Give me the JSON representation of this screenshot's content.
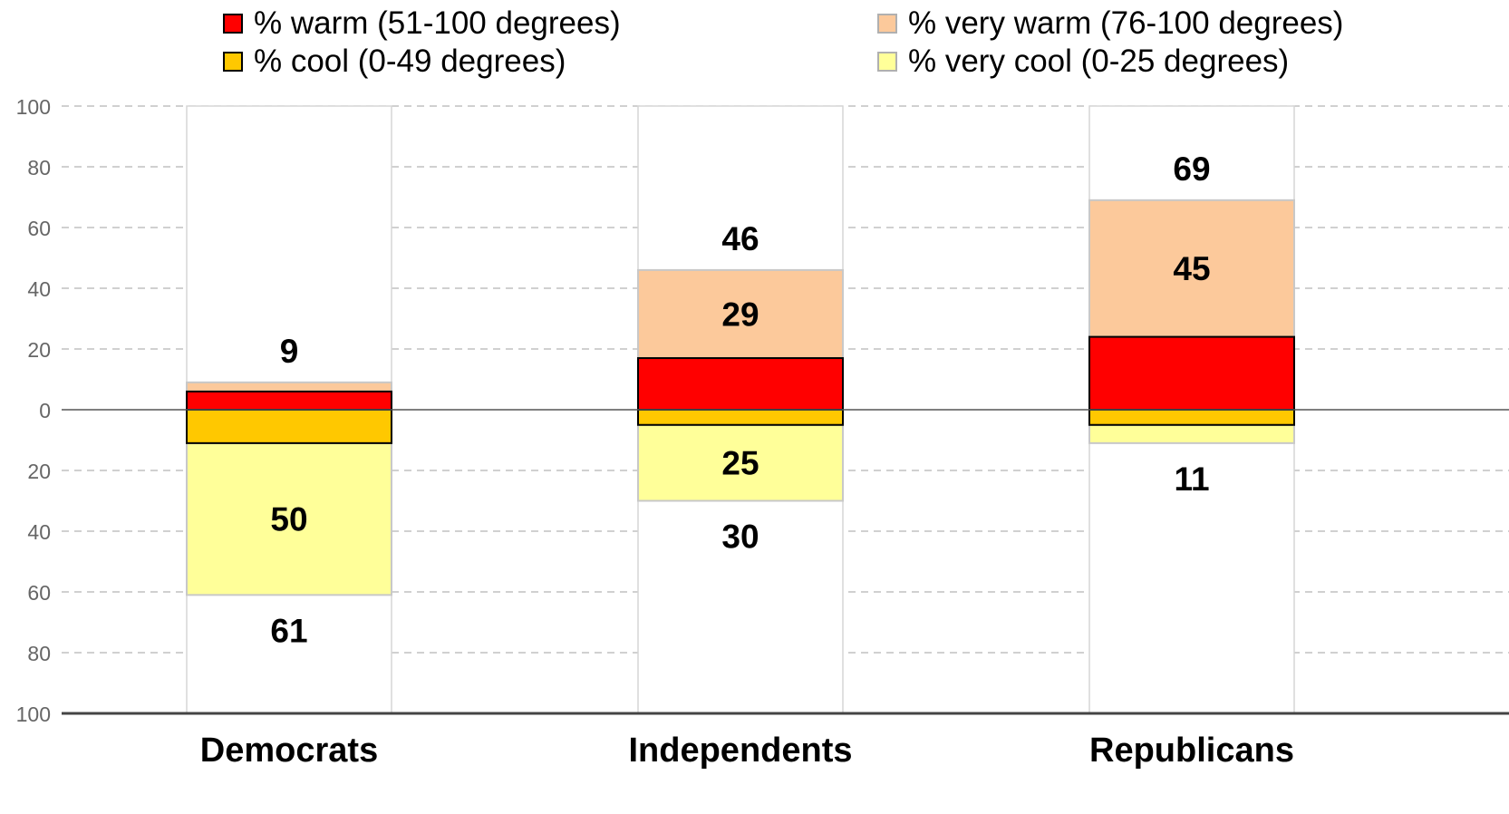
{
  "legend": [
    {
      "key": "warm",
      "label": "% warm (51-100 degrees)"
    },
    {
      "key": "very_warm",
      "label": "% very warm (76-100 degrees)"
    },
    {
      "key": "cool",
      "label": "% cool (0-49 degrees)"
    },
    {
      "key": "very_cool",
      "label": "% very cool (0-25 degrees)"
    }
  ],
  "colors": {
    "warm": "#ff0000",
    "very_warm": "#fcc99b",
    "cool": "#ffc800",
    "very_cool": "#ffff99",
    "column_bg": "#ffffff",
    "grid": "#b4b4b4"
  },
  "chart_data": {
    "type": "bar",
    "stacked": "diverging",
    "categories": [
      "Democrats",
      "Independents",
      "Republicans"
    ],
    "y_ticks": [
      "100",
      "80",
      "60",
      "40",
      "20",
      "0",
      "20",
      "40",
      "60",
      "80",
      "100"
    ],
    "ylim": [
      -100,
      100
    ],
    "grid": true,
    "series": [
      {
        "name": "% very warm (76-100 degrees)",
        "key": "very_warm",
        "values": [
          3,
          29,
          45
        ]
      },
      {
        "name": "% warm (51-100 degrees)",
        "key": "warm",
        "values": [
          6,
          17,
          24
        ]
      },
      {
        "name": "% cool (0-49 degrees)",
        "key": "cool",
        "values": [
          11,
          5,
          5
        ]
      },
      {
        "name": "% very cool (0-25 degrees)",
        "key": "very_cool",
        "values": [
          50,
          25,
          6
        ]
      }
    ],
    "totals_top": [
      9,
      46,
      69
    ],
    "totals_bottom": [
      61,
      30,
      11
    ],
    "segment_labels": {
      "very_warm": [
        "",
        "29",
        "45"
      ],
      "very_cool": [
        "50",
        "25",
        ""
      ]
    }
  }
}
